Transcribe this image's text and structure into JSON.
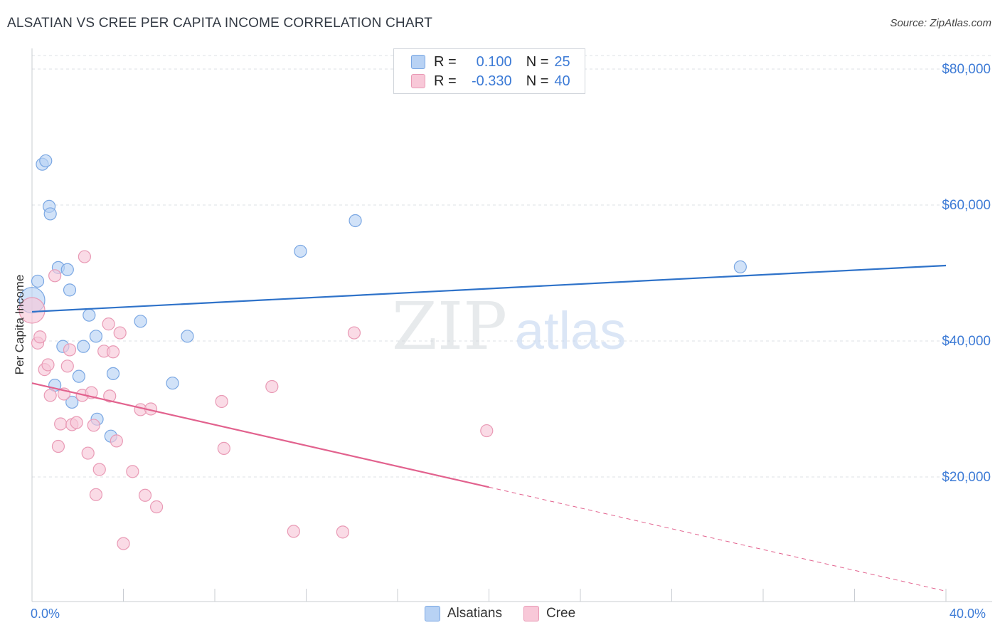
{
  "header": {
    "title": "ALSATIAN VS CREE PER CAPITA INCOME CORRELATION CHART",
    "source": "Source: ZipAtlas.com"
  },
  "legend": {
    "rows": [
      {
        "r_label": "R =",
        "r_value": "0.100",
        "n_label": "N =",
        "n_value": "25"
      },
      {
        "r_label": "R =",
        "r_value": "-0.330",
        "n_label": "N =",
        "n_value": "40"
      }
    ]
  },
  "watermark": {
    "zip": "ZIP",
    "atlas": "atlas"
  },
  "colors": {
    "alsatian_fill": "#b8d2f4",
    "alsatian_stroke": "#7aa7e3",
    "alsatian_line": "#2e72c9",
    "cree_fill": "#f8c8d8",
    "cree_stroke": "#e99ab5",
    "cree_line": "#e2628e",
    "tick_label": "#3d7bd6",
    "grid": "#dde1e6"
  },
  "chart_data": {
    "type": "scatter",
    "title": "ALSATIAN VS CREE PER CAPITA INCOME CORRELATION CHART",
    "xlabel": "",
    "ylabel": "Per Capita Income",
    "xlim": [
      0,
      40
    ],
    "ylim": [
      0,
      82000
    ],
    "x_tick_labels": [
      "0.0%",
      "40.0%"
    ],
    "y_ticks": [
      20000,
      40000,
      60000,
      80000
    ],
    "y_tick_labels": [
      "$20,000",
      "$40,000",
      "$60,000",
      "$80,000"
    ],
    "grid": true,
    "legend_position": "top-center",
    "series": [
      {
        "name": "Alsatians",
        "color": "#b8d2f4",
        "points": [
          {
            "x": 0.0,
            "y": 46000,
            "size": "large"
          },
          {
            "x": 0.25,
            "y": 48800
          },
          {
            "x": 0.45,
            "y": 66000
          },
          {
            "x": 0.6,
            "y": 66500
          },
          {
            "x": 0.75,
            "y": 59800
          },
          {
            "x": 0.8,
            "y": 58700
          },
          {
            "x": 1.0,
            "y": 33500
          },
          {
            "x": 1.15,
            "y": 50800
          },
          {
            "x": 1.35,
            "y": 39200
          },
          {
            "x": 1.55,
            "y": 50500
          },
          {
            "x": 1.65,
            "y": 47500
          },
          {
            "x": 1.75,
            "y": 31000
          },
          {
            "x": 2.05,
            "y": 34800
          },
          {
            "x": 2.25,
            "y": 39200
          },
          {
            "x": 2.5,
            "y": 43800
          },
          {
            "x": 2.8,
            "y": 40700
          },
          {
            "x": 2.85,
            "y": 28500
          },
          {
            "x": 3.45,
            "y": 26000
          },
          {
            "x": 3.55,
            "y": 35200
          },
          {
            "x": 4.75,
            "y": 42900
          },
          {
            "x": 6.15,
            "y": 33800
          },
          {
            "x": 6.8,
            "y": 40700
          },
          {
            "x": 11.75,
            "y": 53200
          },
          {
            "x": 14.15,
            "y": 57700
          },
          {
            "x": 31.0,
            "y": 50900
          }
        ],
        "trend": {
          "x0": 0,
          "y0": 44300,
          "x1": 40,
          "y1": 51100
        }
      },
      {
        "name": "Cree",
        "color": "#f8c8d8",
        "points": [
          {
            "x": 0.0,
            "y": 44500,
            "size": "large"
          },
          {
            "x": 0.25,
            "y": 39700
          },
          {
            "x": 0.35,
            "y": 40600
          },
          {
            "x": 0.55,
            "y": 35800
          },
          {
            "x": 0.7,
            "y": 36500
          },
          {
            "x": 0.8,
            "y": 32000
          },
          {
            "x": 1.0,
            "y": 49600
          },
          {
            "x": 1.15,
            "y": 24500
          },
          {
            "x": 1.25,
            "y": 27800
          },
          {
            "x": 1.4,
            "y": 32200
          },
          {
            "x": 1.55,
            "y": 36300
          },
          {
            "x": 1.65,
            "y": 38700
          },
          {
            "x": 1.75,
            "y": 27700
          },
          {
            "x": 1.95,
            "y": 28000
          },
          {
            "x": 2.2,
            "y": 32000
          },
          {
            "x": 2.3,
            "y": 52400
          },
          {
            "x": 2.45,
            "y": 23500
          },
          {
            "x": 2.6,
            "y": 32400
          },
          {
            "x": 2.7,
            "y": 27600
          },
          {
            "x": 2.8,
            "y": 17400
          },
          {
            "x": 2.95,
            "y": 21100
          },
          {
            "x": 3.15,
            "y": 38500
          },
          {
            "x": 3.35,
            "y": 42500
          },
          {
            "x": 3.4,
            "y": 31900
          },
          {
            "x": 3.55,
            "y": 38400
          },
          {
            "x": 3.7,
            "y": 25300
          },
          {
            "x": 3.85,
            "y": 41200
          },
          {
            "x": 4.0,
            "y": 10200
          },
          {
            "x": 4.4,
            "y": 20800
          },
          {
            "x": 4.75,
            "y": 29900
          },
          {
            "x": 4.95,
            "y": 17300
          },
          {
            "x": 5.2,
            "y": 30000
          },
          {
            "x": 5.45,
            "y": 15600
          },
          {
            "x": 8.3,
            "y": 31100
          },
          {
            "x": 8.4,
            "y": 24200
          },
          {
            "x": 10.5,
            "y": 33300
          },
          {
            "x": 11.45,
            "y": 12000
          },
          {
            "x": 13.6,
            "y": 11900
          },
          {
            "x": 14.1,
            "y": 41200
          },
          {
            "x": 19.9,
            "y": 26800
          }
        ],
        "trend": {
          "x0": 0,
          "y0": 33800,
          "x1": 20,
          "y1": 18500,
          "dashed_to_x": 40,
          "dashed_to_y": 3200
        }
      }
    ]
  }
}
